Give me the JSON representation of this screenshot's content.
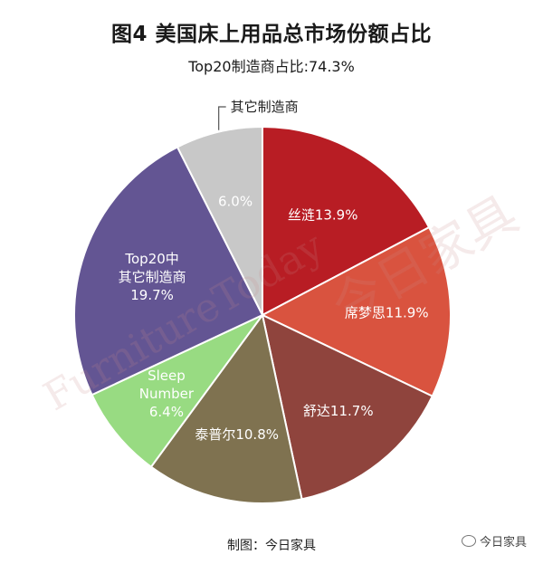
{
  "chart_data": {
    "type": "pie",
    "title": "图4  美国床上用品总市场份额占比",
    "subtitle": "Top20制造商占比:74.3%",
    "slices": [
      {
        "label": "丝涟13.9%",
        "value": 13.9,
        "color": "#b81d24"
      },
      {
        "label": "席梦思11.9%",
        "value": 11.9,
        "color": "#d9533f"
      },
      {
        "label": "舒达11.7%",
        "value": 11.7,
        "color": "#8f443d"
      },
      {
        "label": "泰普尔10.8%",
        "value": 10.8,
        "color": "#7f7250"
      },
      {
        "label": "Sleep\nNumber\n6.4%",
        "value": 6.4,
        "color": "#98db82"
      },
      {
        "label": "Top20中\n其它制造商\n19.7%",
        "value": 19.7,
        "color": "#635593"
      },
      {
        "label": "6.0%",
        "value": 6.0,
        "color": "#c8c8c8"
      }
    ],
    "callout": "其它制造商"
  },
  "footer": {
    "credit": "制图：今日家具",
    "brand": "今日家具"
  },
  "watermark": {
    "english": "FurnitureToday",
    "chinese": "今日家具"
  }
}
